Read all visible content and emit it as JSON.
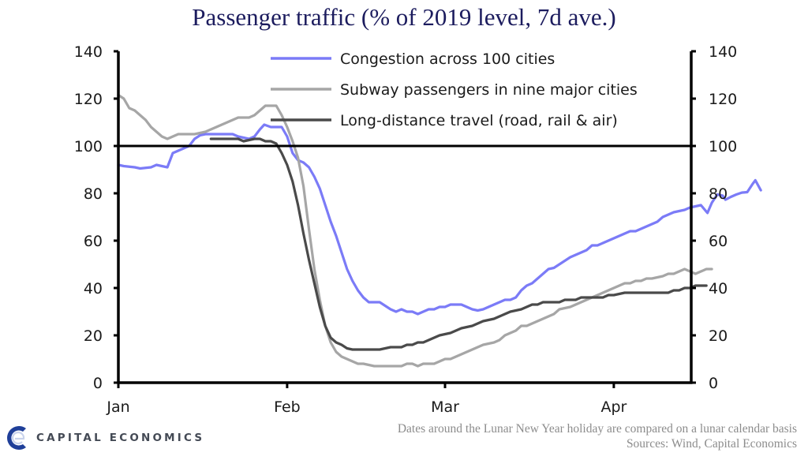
{
  "chart_data": {
    "type": "line",
    "title": "Passenger traffic (% of 2019 level, 7d ave.)",
    "xlabel": "",
    "ylabel": "",
    "x_unit": "days since Jan 1 (2020)",
    "x_range": [
      0,
      106
    ],
    "ylim": [
      0,
      140
    ],
    "yticks": [
      0,
      20,
      40,
      60,
      80,
      100,
      120,
      140
    ],
    "ytick_labels": [
      "0",
      "20",
      "40",
      "60",
      "80",
      "100",
      "120",
      "140"
    ],
    "secondary_ylim": [
      0,
      140
    ],
    "xticks": [
      {
        "label": "Jan",
        "day": 0
      },
      {
        "label": "Feb",
        "day": 31
      },
      {
        "label": "Mar",
        "day": 60
      },
      {
        "label": "Apr",
        "day": 91
      }
    ],
    "reference_line": 100,
    "grid": false,
    "legend_position": "top-center",
    "series": [
      {
        "name": "Congestion across 100 cities",
        "color": "#7b7bf7",
        "points": [
          [
            0,
            92
          ],
          [
            1,
            91.5
          ],
          [
            3,
            91
          ],
          [
            4,
            90.5
          ],
          [
            6,
            91
          ],
          [
            7,
            92
          ],
          [
            8,
            91.5
          ],
          [
            9,
            91
          ],
          [
            10,
            97
          ],
          [
            11,
            98
          ],
          [
            12,
            99
          ],
          [
            13,
            100
          ],
          [
            14,
            103
          ],
          [
            15,
            104.5
          ],
          [
            16,
            105
          ],
          [
            18,
            105
          ],
          [
            20,
            105
          ],
          [
            21,
            105
          ],
          [
            22,
            104
          ],
          [
            23,
            103.5
          ],
          [
            24,
            103
          ],
          [
            25,
            104
          ],
          [
            26,
            107
          ],
          [
            26.8,
            109
          ],
          [
            28,
            108
          ],
          [
            30,
            108
          ],
          [
            31,
            104
          ],
          [
            32,
            97
          ],
          [
            33,
            94
          ],
          [
            34,
            93
          ],
          [
            35,
            91
          ],
          [
            36,
            87
          ],
          [
            37,
            82
          ],
          [
            38,
            75
          ],
          [
            39,
            68
          ],
          [
            40,
            62
          ],
          [
            41,
            55
          ],
          [
            42,
            48
          ],
          [
            43,
            43
          ],
          [
            44,
            39
          ],
          [
            45,
            36
          ],
          [
            46,
            34
          ],
          [
            47,
            34
          ],
          [
            48,
            34
          ],
          [
            49,
            32.5
          ],
          [
            50,
            31
          ],
          [
            51,
            30
          ],
          [
            52,
            31
          ],
          [
            53,
            30
          ],
          [
            54,
            30
          ],
          [
            55,
            29
          ],
          [
            56,
            30
          ],
          [
            57,
            31
          ],
          [
            58,
            31
          ],
          [
            59,
            32
          ],
          [
            60,
            32
          ],
          [
            61,
            33
          ],
          [
            62,
            33
          ],
          [
            63,
            33
          ],
          [
            64,
            32
          ],
          [
            65,
            31
          ],
          [
            66,
            30.5
          ],
          [
            67,
            31
          ],
          [
            68,
            32
          ],
          [
            69,
            33
          ],
          [
            70,
            34
          ],
          [
            71,
            35
          ],
          [
            72,
            35
          ],
          [
            73,
            36
          ],
          [
            74,
            39
          ],
          [
            75,
            41
          ],
          [
            76,
            42
          ],
          [
            77,
            44
          ],
          [
            78,
            46
          ],
          [
            79,
            48
          ],
          [
            80,
            48.5
          ],
          [
            81,
            50
          ],
          [
            82,
            51.5
          ],
          [
            83,
            53
          ],
          [
            84,
            54
          ],
          [
            85,
            55
          ],
          [
            86,
            56
          ],
          [
            87,
            58
          ],
          [
            88,
            58
          ],
          [
            89,
            59
          ],
          [
            90,
            60
          ],
          [
            91,
            61
          ],
          [
            92,
            62
          ],
          [
            93,
            63
          ],
          [
            94,
            64
          ],
          [
            95,
            64
          ],
          [
            96,
            65
          ],
          [
            97,
            66
          ],
          [
            98,
            67
          ],
          [
            99,
            68
          ],
          [
            100,
            70
          ],
          [
            101,
            71
          ],
          [
            102,
            72
          ],
          [
            103,
            72.5
          ],
          [
            104,
            73
          ],
          [
            105,
            74
          ],
          [
            106,
            74.5
          ],
          [
            107,
            75
          ],
          [
            108.2,
            71.7
          ],
          [
            109,
            76
          ],
          [
            110,
            79.5
          ],
          [
            111,
            79
          ],
          [
            111.5,
            77.3
          ],
          [
            112.5,
            78.5
          ],
          [
            113.5,
            79.5
          ],
          [
            114.5,
            80.3
          ],
          [
            115.5,
            80.5
          ],
          [
            116.5,
            84
          ],
          [
            117,
            85.5
          ],
          [
            118,
            81.3
          ]
        ]
      },
      {
        "name": "Subway passengers in nine major cities",
        "color": "#a6a6a6",
        "points": [
          [
            0,
            121.5
          ],
          [
            1,
            120
          ],
          [
            2,
            116
          ],
          [
            3,
            115
          ],
          [
            4,
            113
          ],
          [
            5,
            111
          ],
          [
            6,
            108
          ],
          [
            7,
            106
          ],
          [
            8,
            104
          ],
          [
            9,
            103
          ],
          [
            10,
            104
          ],
          [
            11,
            105
          ],
          [
            12,
            105
          ],
          [
            13,
            105
          ],
          [
            14,
            105
          ],
          [
            15,
            105.5
          ],
          [
            16,
            106
          ],
          [
            17,
            107
          ],
          [
            18,
            108
          ],
          [
            19,
            109
          ],
          [
            20,
            110
          ],
          [
            21,
            111
          ],
          [
            22,
            112
          ],
          [
            23,
            112
          ],
          [
            24,
            112
          ],
          [
            25,
            113
          ],
          [
            26,
            115
          ],
          [
            27,
            117
          ],
          [
            28,
            117
          ],
          [
            29,
            117
          ],
          [
            30,
            113
          ],
          [
            31,
            108
          ],
          [
            32,
            102
          ],
          [
            33,
            95
          ],
          [
            34,
            83
          ],
          [
            35,
            65
          ],
          [
            36,
            48
          ],
          [
            37,
            35
          ],
          [
            38,
            24
          ],
          [
            39,
            17
          ],
          [
            40,
            13
          ],
          [
            41,
            11
          ],
          [
            42,
            10
          ],
          [
            43,
            9
          ],
          [
            44,
            8
          ],
          [
            45,
            8
          ],
          [
            46,
            7.5
          ],
          [
            47,
            7
          ],
          [
            48,
            7
          ],
          [
            49,
            7
          ],
          [
            50,
            7
          ],
          [
            51,
            7
          ],
          [
            52,
            7
          ],
          [
            53,
            8
          ],
          [
            54,
            8
          ],
          [
            55,
            7
          ],
          [
            56,
            8
          ],
          [
            57,
            8
          ],
          [
            58,
            8
          ],
          [
            59,
            9
          ],
          [
            60,
            10
          ],
          [
            61,
            10
          ],
          [
            62,
            11
          ],
          [
            63,
            12
          ],
          [
            64,
            13
          ],
          [
            65,
            14
          ],
          [
            66,
            15
          ],
          [
            67,
            16
          ],
          [
            68,
            16.5
          ],
          [
            69,
            17
          ],
          [
            70,
            18
          ],
          [
            71,
            20
          ],
          [
            72,
            21
          ],
          [
            73,
            22
          ],
          [
            74,
            24
          ],
          [
            75,
            24
          ],
          [
            76,
            25
          ],
          [
            77,
            26
          ],
          [
            78,
            27
          ],
          [
            79,
            28
          ],
          [
            80,
            29
          ],
          [
            81,
            31
          ],
          [
            82,
            31.5
          ],
          [
            83,
            32
          ],
          [
            84,
            33
          ],
          [
            85,
            34
          ],
          [
            86,
            35
          ],
          [
            87,
            36
          ],
          [
            88,
            37
          ],
          [
            89,
            38
          ],
          [
            90,
            39
          ],
          [
            91,
            40
          ],
          [
            92,
            41
          ],
          [
            93,
            42
          ],
          [
            94,
            42
          ],
          [
            95,
            43
          ],
          [
            96,
            43
          ],
          [
            97,
            44
          ],
          [
            98,
            44
          ],
          [
            99,
            44.5
          ],
          [
            100,
            45
          ],
          [
            101,
            46
          ],
          [
            102,
            46
          ],
          [
            103,
            47
          ],
          [
            104,
            48
          ],
          [
            105,
            47
          ],
          [
            106,
            46
          ],
          [
            107,
            47
          ],
          [
            108,
            48
          ],
          [
            109,
            48
          ]
        ]
      },
      {
        "name": "Long-distance travel (road, rail & air)",
        "color": "#4a4a4a",
        "points": [
          [
            17,
            103
          ],
          [
            18,
            103
          ],
          [
            19,
            103
          ],
          [
            20,
            103
          ],
          [
            21,
            103
          ],
          [
            22,
            103
          ],
          [
            23,
            102
          ],
          [
            24,
            102.5
          ],
          [
            25,
            103
          ],
          [
            26,
            103
          ],
          [
            27,
            102
          ],
          [
            28,
            102
          ],
          [
            29,
            101
          ],
          [
            30,
            97
          ],
          [
            31,
            92
          ],
          [
            32,
            85
          ],
          [
            33,
            75
          ],
          [
            34,
            63
          ],
          [
            35,
            52
          ],
          [
            36,
            42
          ],
          [
            37,
            32
          ],
          [
            38,
            24
          ],
          [
            39,
            19
          ],
          [
            40,
            17
          ],
          [
            41,
            16
          ],
          [
            42,
            14.5
          ],
          [
            43,
            14
          ],
          [
            44,
            14
          ],
          [
            45,
            14
          ],
          [
            46,
            14
          ],
          [
            47,
            14
          ],
          [
            48,
            14
          ],
          [
            49,
            14.5
          ],
          [
            50,
            15
          ],
          [
            51,
            15
          ],
          [
            52,
            15
          ],
          [
            53,
            16
          ],
          [
            54,
            16
          ],
          [
            55,
            17
          ],
          [
            56,
            17
          ],
          [
            57,
            18
          ],
          [
            58,
            19
          ],
          [
            59,
            20
          ],
          [
            60,
            20.5
          ],
          [
            61,
            21
          ],
          [
            62,
            22
          ],
          [
            63,
            23
          ],
          [
            64,
            23.5
          ],
          [
            65,
            24
          ],
          [
            66,
            25
          ],
          [
            67,
            26
          ],
          [
            68,
            26.5
          ],
          [
            69,
            27
          ],
          [
            70,
            28
          ],
          [
            71,
            29
          ],
          [
            72,
            30
          ],
          [
            73,
            30.5
          ],
          [
            74,
            31
          ],
          [
            75,
            32
          ],
          [
            76,
            33
          ],
          [
            77,
            33
          ],
          [
            78,
            34
          ],
          [
            79,
            34
          ],
          [
            80,
            34
          ],
          [
            81,
            34
          ],
          [
            82,
            35
          ],
          [
            83,
            35
          ],
          [
            84,
            35
          ],
          [
            85,
            36
          ],
          [
            86,
            36
          ],
          [
            87,
            36
          ],
          [
            88,
            36
          ],
          [
            89,
            36
          ],
          [
            90,
            37
          ],
          [
            91,
            37
          ],
          [
            92,
            37.5
          ],
          [
            93,
            38
          ],
          [
            94,
            38
          ],
          [
            95,
            38
          ],
          [
            96,
            38
          ],
          [
            97,
            38
          ],
          [
            98,
            38
          ],
          [
            99,
            38
          ],
          [
            100,
            38
          ],
          [
            101,
            38
          ],
          [
            102,
            39
          ],
          [
            103,
            39
          ],
          [
            104,
            40
          ],
          [
            105,
            40
          ],
          [
            106,
            41
          ],
          [
            107,
            41
          ],
          [
            108,
            41
          ]
        ]
      }
    ]
  },
  "footer": {
    "note": "Dates around the Lunar New Year holiday are compared on a lunar calendar basis",
    "sources": "Sources: Wind, Capital Economics",
    "logo_text": "CAPITAL ECONOMICS",
    "logo_color": "#1f3f99"
  }
}
